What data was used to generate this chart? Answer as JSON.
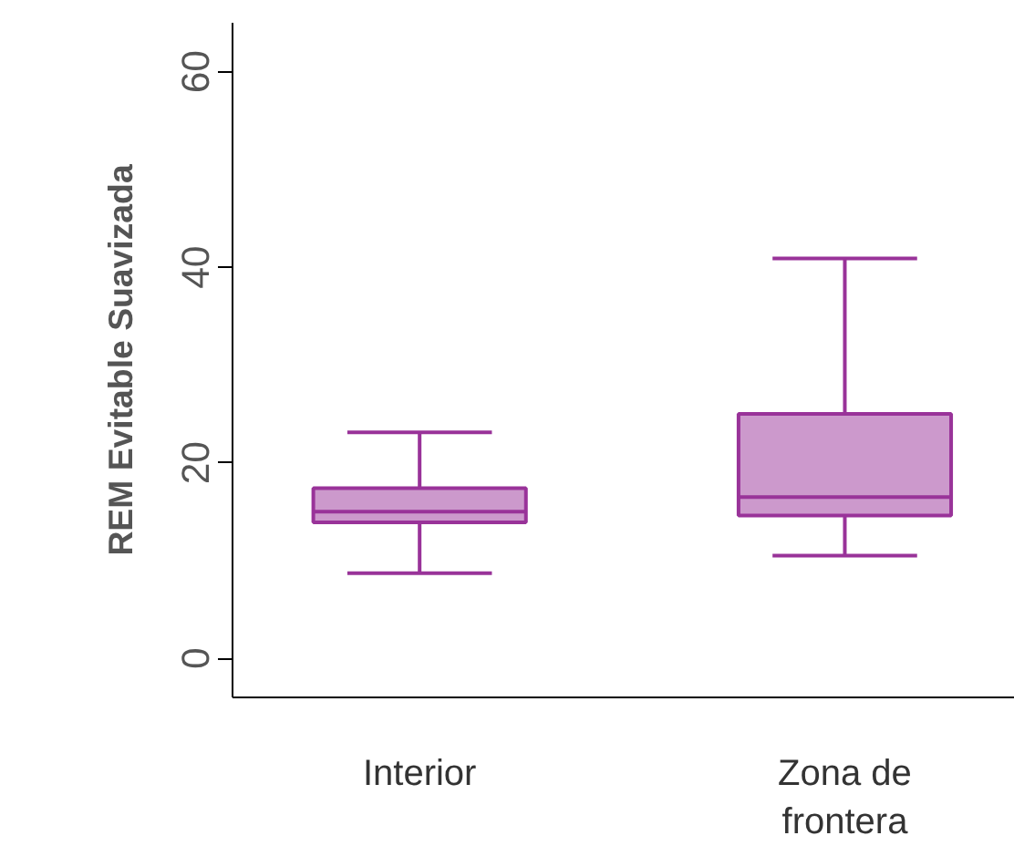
{
  "chart_data": {
    "type": "box",
    "ylabel": "REM Evitable Suavizada",
    "categories": [
      "Interior",
      "Zona de frontera"
    ],
    "color": "#993399",
    "boxes": [
      {
        "low": 8.7,
        "q1": 13.9,
        "median": 15.0,
        "q3": 17.4,
        "high": 23.1
      },
      {
        "low": 10.5,
        "q1": 14.6,
        "median": 16.5,
        "q3": 25.0,
        "high": 40.9
      }
    ],
    "ylim": [
      -4,
      65
    ],
    "yticks": [
      0,
      20,
      40,
      60
    ],
    "grid": false
  }
}
